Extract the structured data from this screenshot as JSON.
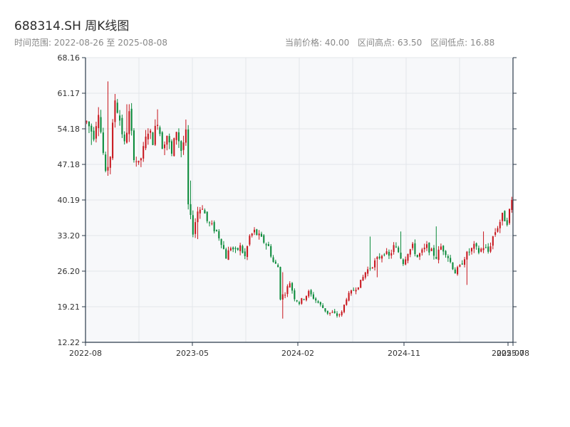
{
  "header": {
    "title": "688314.SH 周K线图",
    "time_range": "时间范围: 2022-08-26 至 2025-08-08",
    "current_price": "当前价格: 40.00",
    "period_high": "区间高点: 63.50",
    "period_low": "区间低点: 16.88"
  },
  "colors": {
    "up": "#c8161d",
    "down": "#0a8a3a",
    "plot_bg": "#f7f8fa",
    "grid": "#e3e6ea",
    "axis": "#2b3a4a"
  },
  "chart_data": {
    "type": "candlestick",
    "title": "688314.SH 周K线图",
    "x_range": [
      "2022-08-26",
      "2025-08-08"
    ],
    "ylim": [
      12.22,
      68.16
    ],
    "y_ticks": [
      "12.22",
      "19.21",
      "26.20",
      "33.20",
      "40.19",
      "47.18",
      "54.18",
      "61.17",
      "68.16"
    ],
    "x_ticks": [
      "2022-08",
      "2023-05",
      "2024-02",
      "2024-11",
      "2025-07",
      "2025-08"
    ],
    "grid": true,
    "close_path": [
      [
        0,
        55.5
      ],
      [
        3,
        53
      ],
      [
        5,
        58
      ],
      [
        8,
        45
      ],
      [
        10,
        49
      ],
      [
        12,
        60
      ],
      [
        14,
        56
      ],
      [
        16,
        51
      ],
      [
        18,
        57
      ],
      [
        20,
        49
      ],
      [
        22,
        47
      ],
      [
        24,
        50
      ],
      [
        26,
        54
      ],
      [
        28,
        52
      ],
      [
        30,
        56
      ],
      [
        32,
        51
      ],
      [
        34,
        53
      ],
      [
        36,
        49
      ],
      [
        38,
        54
      ],
      [
        40,
        50
      ],
      [
        42,
        53
      ],
      [
        43,
        39
      ],
      [
        45,
        34
      ],
      [
        47,
        38
      ],
      [
        49,
        39
      ],
      [
        51,
        36
      ],
      [
        53,
        35
      ],
      [
        55,
        34
      ],
      [
        57,
        32
      ],
      [
        59,
        29
      ],
      [
        61,
        31
      ],
      [
        63,
        30
      ],
      [
        65,
        31
      ],
      [
        67,
        29
      ],
      [
        69,
        33
      ],
      [
        71,
        34
      ],
      [
        73,
        33
      ],
      [
        75,
        32
      ],
      [
        77,
        31
      ],
      [
        79,
        28
      ],
      [
        81,
        27
      ],
      [
        82,
        21
      ],
      [
        84,
        22
      ],
      [
        86,
        24
      ],
      [
        88,
        21
      ],
      [
        90,
        20
      ],
      [
        92,
        21
      ],
      [
        94,
        22
      ],
      [
        96,
        21
      ],
      [
        98,
        20
      ],
      [
        100,
        19
      ],
      [
        102,
        18
      ],
      [
        104,
        18
      ],
      [
        106,
        17.5
      ],
      [
        108,
        18
      ],
      [
        110,
        21
      ],
      [
        112,
        22
      ],
      [
        114,
        23
      ],
      [
        116,
        24
      ],
      [
        118,
        26
      ],
      [
        120,
        27
      ],
      [
        122,
        28
      ],
      [
        124,
        29
      ],
      [
        126,
        30
      ],
      [
        128,
        29
      ],
      [
        130,
        31
      ],
      [
        132,
        30
      ],
      [
        134,
        28
      ],
      [
        136,
        30
      ],
      [
        138,
        31
      ],
      [
        140,
        29
      ],
      [
        142,
        30
      ],
      [
        144,
        31
      ],
      [
        146,
        30
      ],
      [
        148,
        29
      ],
      [
        150,
        31
      ],
      [
        152,
        30
      ],
      [
        154,
        28
      ],
      [
        156,
        26
      ],
      [
        158,
        27
      ],
      [
        160,
        29
      ],
      [
        162,
        30
      ],
      [
        164,
        31
      ],
      [
        166,
        30
      ],
      [
        168,
        31
      ],
      [
        170,
        30
      ],
      [
        172,
        33
      ],
      [
        174,
        35
      ],
      [
        176,
        37
      ],
      [
        178,
        36
      ],
      [
        180,
        40
      ]
    ],
    "spike_highs": [
      [
        9,
        63.5
      ],
      [
        17,
        59
      ],
      [
        30,
        58
      ],
      [
        42,
        56
      ],
      [
        44,
        44
      ],
      [
        83,
        26
      ],
      [
        120,
        33
      ],
      [
        133,
        34
      ],
      [
        148,
        35
      ],
      [
        168,
        34
      ]
    ],
    "spike_lows": [
      [
        2,
        51
      ],
      [
        33,
        49
      ],
      [
        47,
        32.5
      ],
      [
        83,
        16.88
      ],
      [
        123,
        25
      ],
      [
        161,
        23.5
      ]
    ]
  }
}
